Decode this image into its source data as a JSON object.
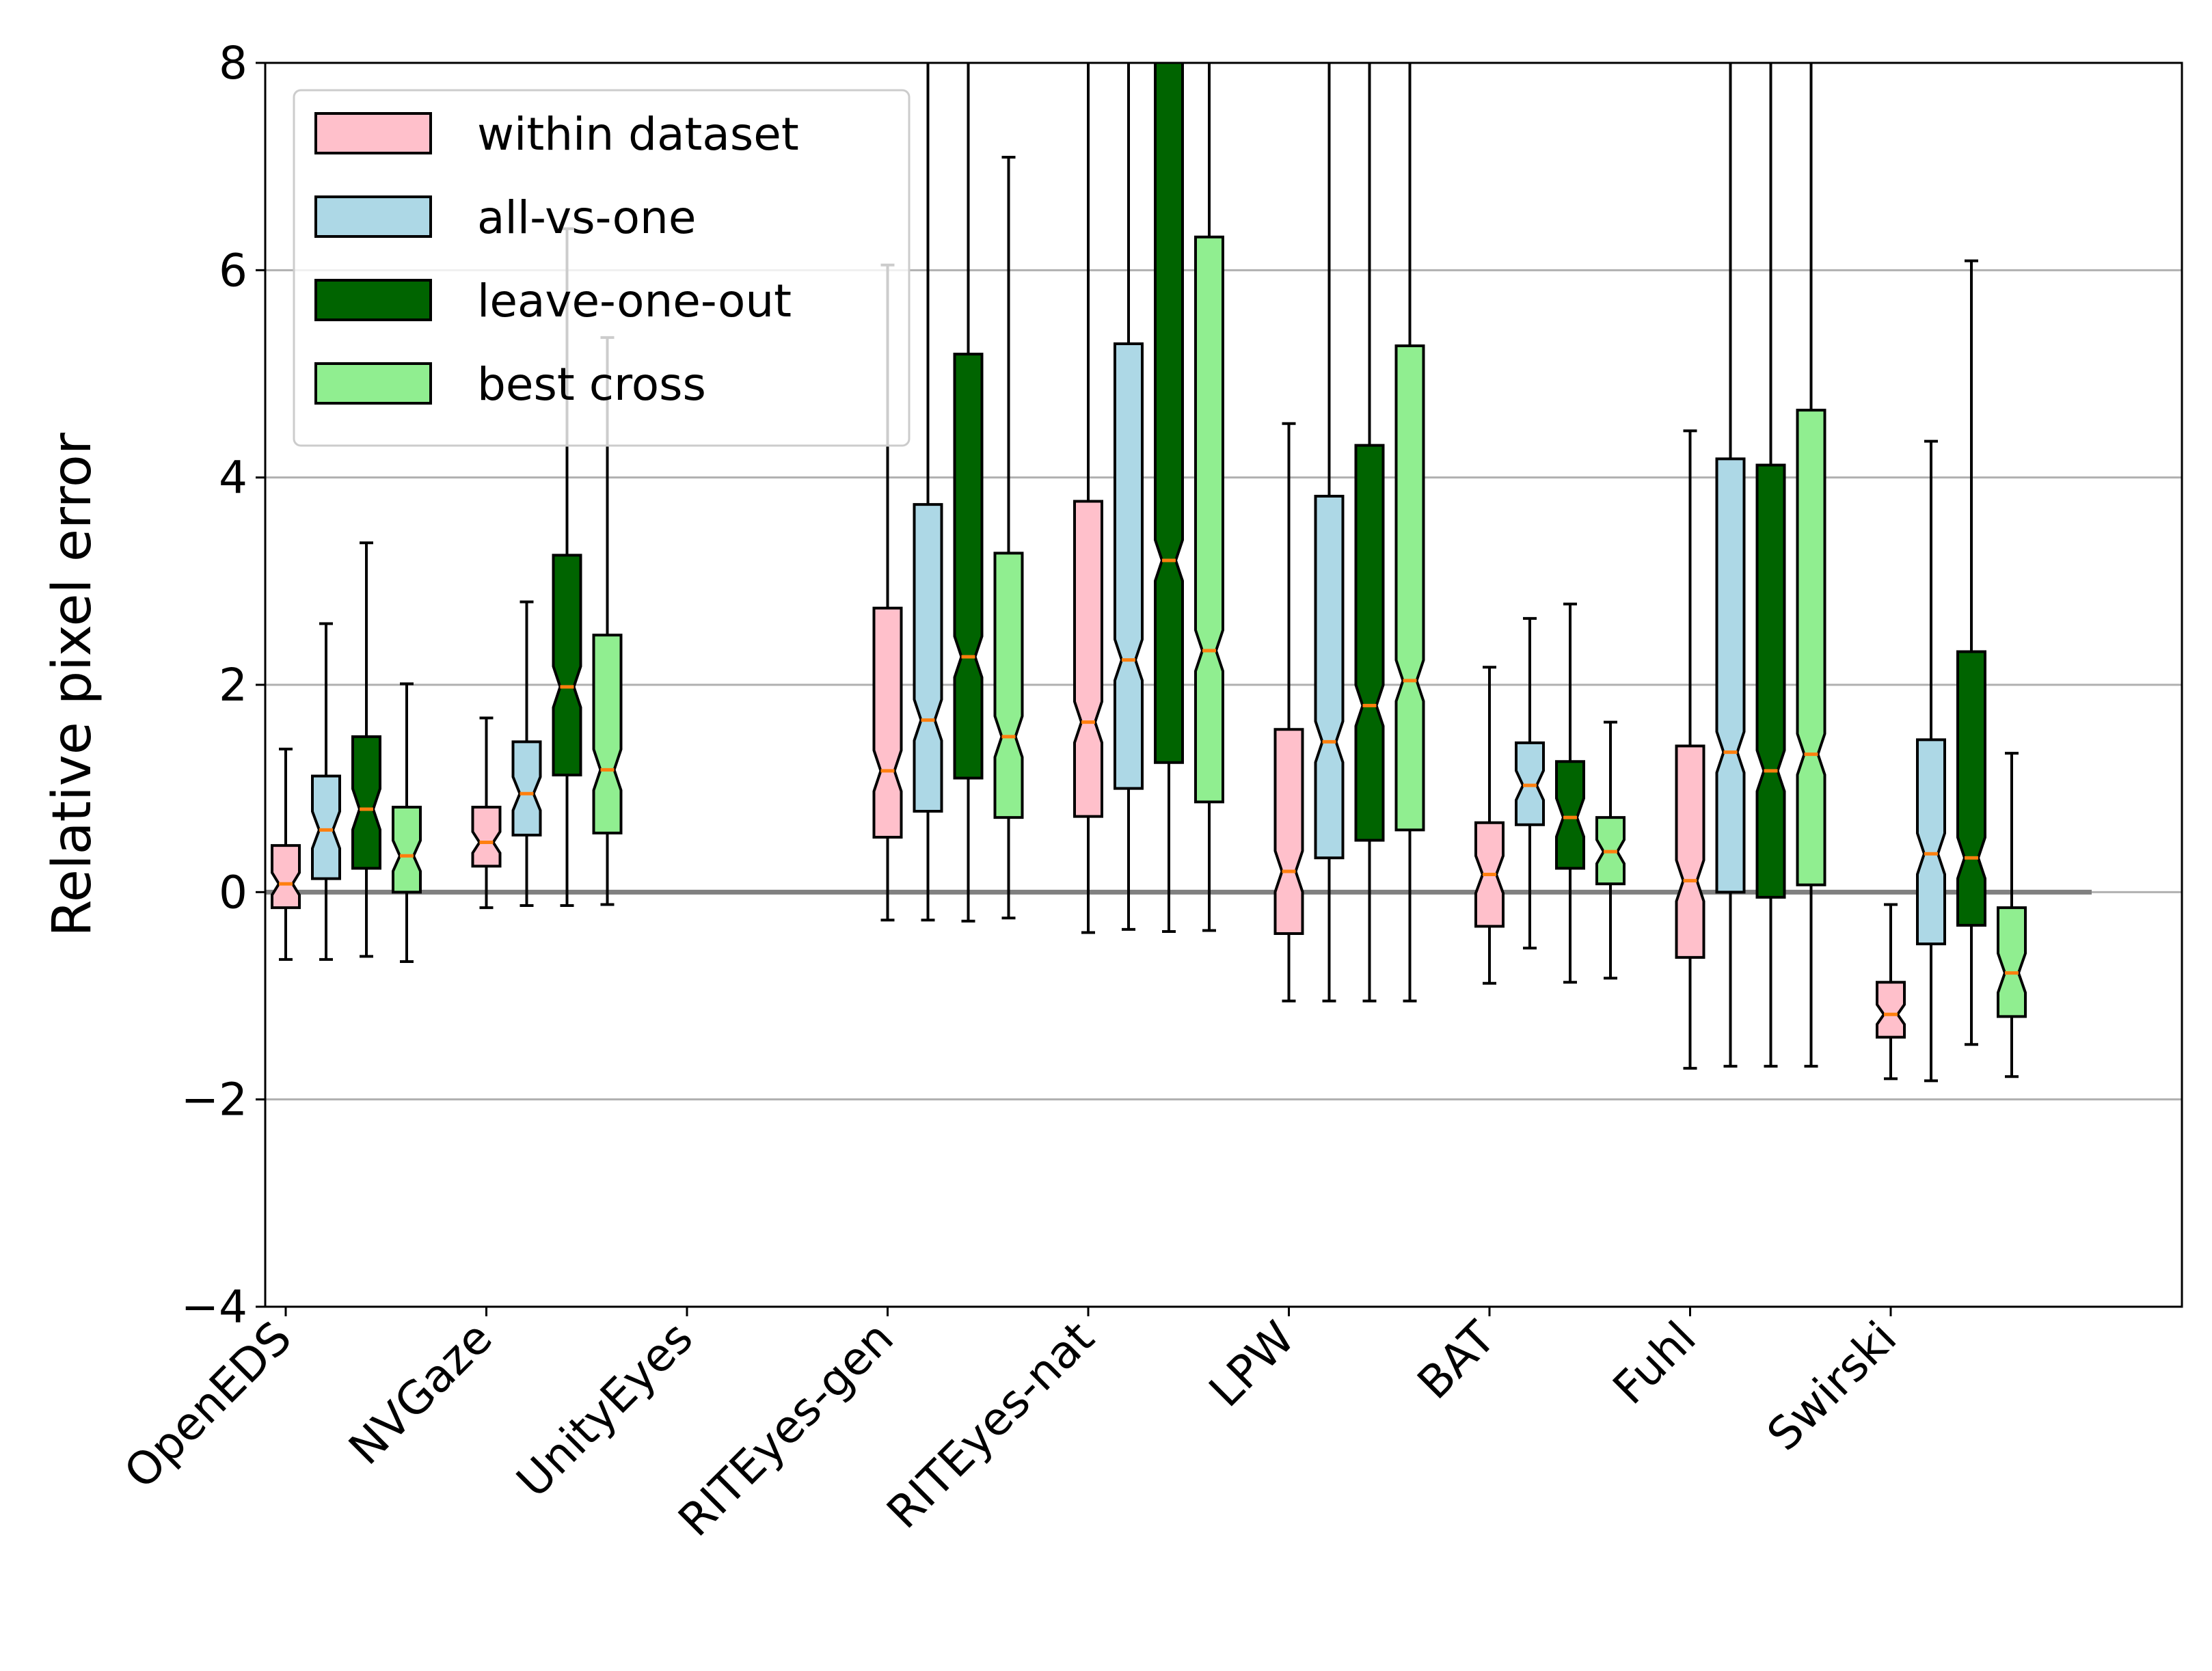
{
  "chart_data": {
    "type": "box",
    "title": "",
    "xlabel": "",
    "ylabel": "Relative pixel error",
    "ylim": [
      -4,
      8
    ],
    "yticks": [
      -4,
      -2,
      0,
      2,
      4,
      6,
      8
    ],
    "ytick_labels": [
      "−4",
      "−2",
      "0",
      "2",
      "4",
      "6",
      "8"
    ],
    "grid": "horizontal",
    "legend_position": "top-left",
    "categories": [
      "OpenEDS",
      "NVGaze",
      "UnityEyes",
      "RITEyes-gen",
      "RITEyes-nat",
      "LPW",
      "BAT",
      "Fuhl",
      "Swirski"
    ],
    "series": [
      {
        "name": "within dataset",
        "color": "#ffc0cb",
        "boxes": [
          {
            "q1": -0.15,
            "median": 0.08,
            "q3": 0.45,
            "whislo": -0.65,
            "whishi": 1.38
          },
          {
            "q1": 0.25,
            "median": 0.48,
            "q3": 0.82,
            "whislo": -0.15,
            "whishi": 1.68
          },
          null,
          {
            "q1": 0.53,
            "median": 1.17,
            "q3": 2.74,
            "whislo": -0.27,
            "whishi": 6.05
          },
          {
            "q1": 0.73,
            "median": 1.64,
            "q3": 3.77,
            "whislo": -0.39,
            "whishi": 9.5
          },
          {
            "q1": -0.4,
            "median": 0.2,
            "q3": 1.57,
            "whislo": -1.05,
            "whishi": 4.52
          },
          {
            "q1": -0.33,
            "median": 0.17,
            "q3": 0.67,
            "whislo": -0.88,
            "whishi": 2.17
          },
          {
            "q1": -0.63,
            "median": 0.11,
            "q3": 1.41,
            "whislo": -1.7,
            "whishi": 4.45
          },
          {
            "q1": -1.4,
            "median": -1.18,
            "q3": -0.87,
            "whislo": -1.8,
            "whishi": -0.12
          }
        ]
      },
      {
        "name": "all-vs-one",
        "color": "#add8e6",
        "boxes": [
          {
            "q1": 0.13,
            "median": 0.6,
            "q3": 1.12,
            "whislo": -0.65,
            "whishi": 2.59
          },
          {
            "q1": 0.55,
            "median": 0.95,
            "q3": 1.45,
            "whislo": -0.13,
            "whishi": 2.8
          },
          null,
          {
            "q1": 0.78,
            "median": 1.66,
            "q3": 3.74,
            "whislo": -0.27,
            "whishi": 9.5
          },
          {
            "q1": 1.0,
            "median": 2.24,
            "q3": 5.29,
            "whislo": -0.36,
            "whishi": 9.5
          },
          {
            "q1": 0.33,
            "median": 1.45,
            "q3": 3.82,
            "whislo": -1.05,
            "whishi": 9.5
          },
          {
            "q1": 0.65,
            "median": 1.03,
            "q3": 1.44,
            "whislo": -0.54,
            "whishi": 2.64
          },
          {
            "q1": 0.0,
            "median": 1.35,
            "q3": 4.18,
            "whislo": -1.68,
            "whishi": 9.5
          },
          {
            "q1": -0.5,
            "median": 0.37,
            "q3": 1.47,
            "whislo": -1.82,
            "whishi": 4.35
          }
        ]
      },
      {
        "name": "leave-one-out",
        "color": "#006400",
        "boxes": [
          {
            "q1": 0.23,
            "median": 0.8,
            "q3": 1.5,
            "whislo": -0.62,
            "whishi": 3.37
          },
          {
            "q1": 1.13,
            "median": 1.98,
            "q3": 3.25,
            "whislo": -0.13,
            "whishi": 6.4
          },
          null,
          {
            "q1": 1.1,
            "median": 2.27,
            "q3": 5.19,
            "whislo": -0.28,
            "whishi": 9.5
          },
          {
            "q1": 1.25,
            "median": 3.2,
            "q3": 8.5,
            "whislo": -0.38,
            "whishi": 9.5
          },
          {
            "q1": 0.5,
            "median": 1.8,
            "q3": 4.31,
            "whislo": -1.05,
            "whishi": 9.5
          },
          {
            "q1": 0.23,
            "median": 0.72,
            "q3": 1.26,
            "whislo": -0.87,
            "whishi": 2.78
          },
          {
            "q1": -0.05,
            "median": 1.17,
            "q3": 4.12,
            "whislo": -1.68,
            "whishi": 9.5
          },
          {
            "q1": -0.32,
            "median": 0.33,
            "q3": 2.32,
            "whislo": -1.47,
            "whishi": 6.09
          }
        ]
      },
      {
        "name": "best cross",
        "color": "#90ee90",
        "boxes": [
          {
            "q1": 0.0,
            "median": 0.35,
            "q3": 0.82,
            "whislo": -0.67,
            "whishi": 2.01
          },
          {
            "q1": 0.57,
            "median": 1.18,
            "q3": 2.48,
            "whislo": -0.12,
            "whishi": 5.35
          },
          null,
          {
            "q1": 0.72,
            "median": 1.5,
            "q3": 3.27,
            "whislo": -0.25,
            "whishi": 7.09
          },
          {
            "q1": 0.87,
            "median": 2.33,
            "q3": 6.32,
            "whislo": -0.37,
            "whishi": 9.5
          },
          {
            "q1": 0.6,
            "median": 2.04,
            "q3": 5.27,
            "whislo": -1.05,
            "whishi": 9.5
          },
          {
            "q1": 0.08,
            "median": 0.39,
            "q3": 0.72,
            "whislo": -0.83,
            "whishi": 1.64
          },
          {
            "q1": 0.07,
            "median": 1.33,
            "q3": 4.65,
            "whislo": -1.68,
            "whishi": 9.5
          },
          {
            "q1": -1.2,
            "median": -0.78,
            "q3": -0.15,
            "whislo": -1.78,
            "whishi": 1.34
          }
        ]
      }
    ]
  }
}
